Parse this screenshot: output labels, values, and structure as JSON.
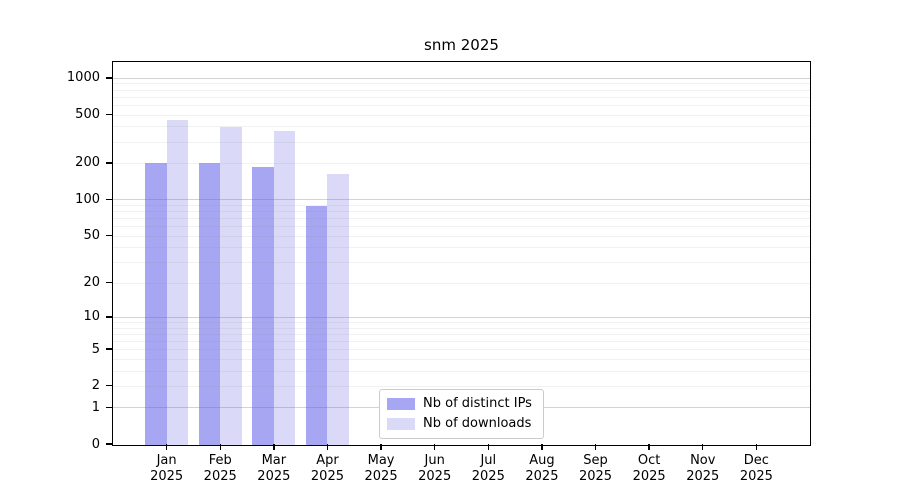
{
  "title": "snm 2025",
  "legend": {
    "items": [
      {
        "label": "Nb of distinct IPs",
        "color": "#a6a6f2"
      },
      {
        "label": "Nb of downloads",
        "color": "#dadaf8"
      }
    ]
  },
  "chart_data": {
    "type": "bar",
    "title": "snm 2025",
    "categories": [
      "Jan",
      "Feb",
      "Mar",
      "Apr",
      "May",
      "Jun",
      "Jul",
      "Aug",
      "Sep",
      "Oct",
      "Nov",
      "Dec"
    ],
    "category_year_label": "2025",
    "series": [
      {
        "name": "Nb of distinct IPs",
        "color": "#a6a6f2",
        "values": [
          205,
          205,
          190,
          90,
          0,
          0,
          0,
          0,
          0,
          0,
          0,
          0
        ]
      },
      {
        "name": "Nb of downloads",
        "color": "#dadaf8",
        "values": [
          460,
          400,
          375,
          165,
          0,
          0,
          0,
          0,
          0,
          0,
          0,
          0
        ]
      }
    ],
    "xlabel": "",
    "ylabel": "",
    "yscale": "log1p",
    "ylim": [
      0,
      1350
    ],
    "y_ticks": [
      1000,
      500,
      200,
      100,
      50,
      20,
      10,
      5,
      2,
      1,
      0
    ],
    "grid": true,
    "grid_major_values": [
      1,
      10,
      100,
      1000
    ],
    "grid_major_color": "#c6c6c6",
    "grid_minor_color": "#ececec",
    "legend_position": "lower center"
  }
}
